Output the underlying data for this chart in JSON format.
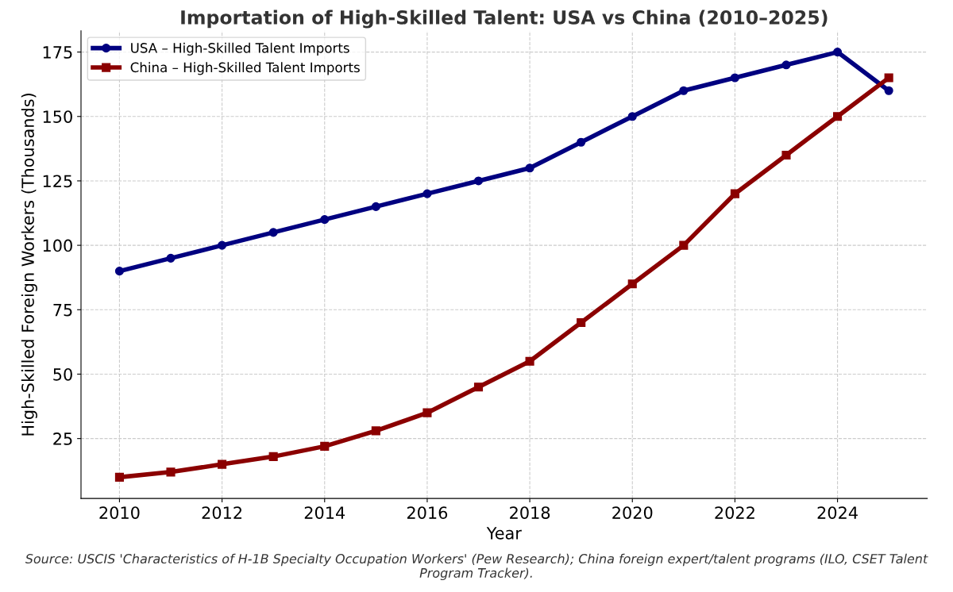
{
  "chart_data": {
    "type": "line",
    "title": "Importation of High-Skilled Talent: USA vs China (2010–2025)",
    "xlabel": "Year",
    "ylabel": "High-Skilled Foreign Workers (Thousands)",
    "x": [
      2010,
      2011,
      2012,
      2013,
      2014,
      2015,
      2016,
      2017,
      2018,
      2019,
      2020,
      2021,
      2022,
      2023,
      2024,
      2025
    ],
    "series": [
      {
        "name": "USA – High-Skilled Talent Imports",
        "color": "#000080",
        "marker": "circle",
        "values": [
          90,
          95,
          100,
          105,
          110,
          115,
          120,
          125,
          130,
          140,
          150,
          160,
          165,
          170,
          175,
          160
        ]
      },
      {
        "name": "China – High-Skilled Talent Imports",
        "color": "#8b0000",
        "marker": "square",
        "values": [
          10,
          12,
          15,
          18,
          22,
          28,
          35,
          45,
          55,
          70,
          85,
          100,
          120,
          135,
          150,
          165
        ]
      }
    ],
    "xlim": [
      2009.25,
      2025.75
    ],
    "xticks": [
      2010,
      2012,
      2014,
      2016,
      2018,
      2020,
      2022,
      2024
    ],
    "ylim": [
      1.75,
      183.25
    ],
    "yticks": [
      25,
      50,
      75,
      100,
      125,
      150,
      175
    ],
    "grid": true,
    "legend": "top left",
    "line_style": "solid",
    "annotations": [
      "Source: USCIS 'Characteristics of H-1B Specialty Occupation Workers' (Pew Research); China foreign expert/talent programs (ILO, CSET Talent Program Tracker)."
    ]
  }
}
